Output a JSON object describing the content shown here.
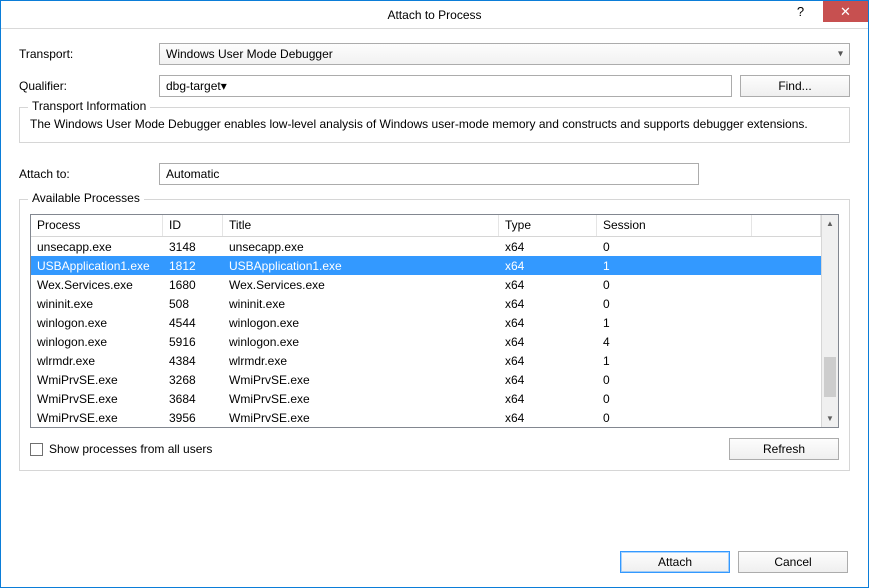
{
  "window": {
    "title": "Attach to Process",
    "help_glyph": "?",
    "close_glyph": "✕"
  },
  "labels": {
    "transport": "Transport:",
    "qualifier": "Qualifier:",
    "attach_to": "Attach to:",
    "find": "Find...",
    "refresh": "Refresh",
    "attach": "Attach",
    "cancel": "Cancel",
    "show_all_users": "Show processes from all users"
  },
  "transport_value": "Windows User Mode Debugger",
  "qualifier_value": "dbg-target",
  "attach_to_value": "Automatic",
  "transport_info": {
    "title": "Transport Information",
    "text": "The Windows User Mode Debugger enables low-level analysis of Windows user-mode memory and constructs and supports debugger extensions."
  },
  "processes": {
    "title": "Available Processes",
    "columns": {
      "process": "Process",
      "id": "ID",
      "title": "Title",
      "type": "Type",
      "session": "Session"
    },
    "rows": [
      {
        "process": "unsecapp.exe",
        "id": "3148",
        "title": "unsecapp.exe",
        "type": "x64",
        "session": "0",
        "selected": false
      },
      {
        "process": "USBApplication1.exe",
        "id": "1812",
        "title": "USBApplication1.exe",
        "type": "x64",
        "session": "1",
        "selected": true
      },
      {
        "process": "Wex.Services.exe",
        "id": "1680",
        "title": "Wex.Services.exe",
        "type": "x64",
        "session": "0",
        "selected": false
      },
      {
        "process": "wininit.exe",
        "id": "508",
        "title": "wininit.exe",
        "type": "x64",
        "session": "0",
        "selected": false
      },
      {
        "process": "winlogon.exe",
        "id": "4544",
        "title": "winlogon.exe",
        "type": "x64",
        "session": "1",
        "selected": false
      },
      {
        "process": "winlogon.exe",
        "id": "5916",
        "title": "winlogon.exe",
        "type": "x64",
        "session": "4",
        "selected": false
      },
      {
        "process": "wlrmdr.exe",
        "id": "4384",
        "title": "wlrmdr.exe",
        "type": "x64",
        "session": "1",
        "selected": false
      },
      {
        "process": "WmiPrvSE.exe",
        "id": "3268",
        "title": "WmiPrvSE.exe",
        "type": "x64",
        "session": "0",
        "selected": false
      },
      {
        "process": "WmiPrvSE.exe",
        "id": "3684",
        "title": "WmiPrvSE.exe",
        "type": "x64",
        "session": "0",
        "selected": false
      },
      {
        "process": "WmiPrvSE.exe",
        "id": "3956",
        "title": "WmiPrvSE.exe",
        "type": "x64",
        "session": "0",
        "selected": false
      }
    ]
  },
  "colors": {
    "window_border": "#0b7dd8",
    "close_bg": "#c75050",
    "selection": "#3399ff"
  }
}
